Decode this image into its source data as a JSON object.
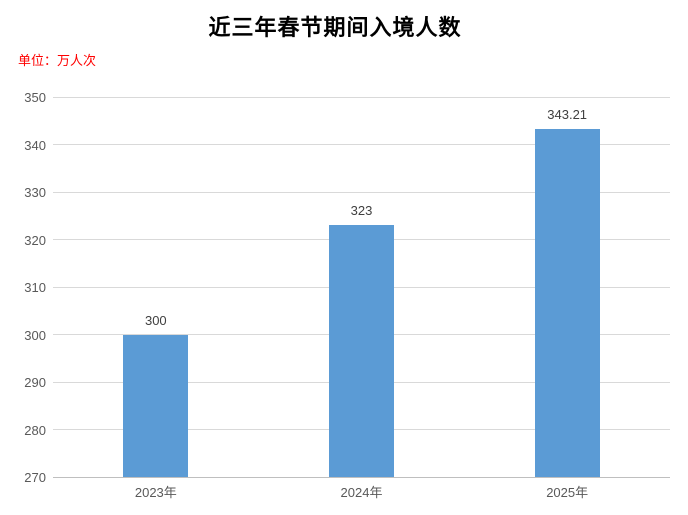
{
  "chart_data": {
    "type": "bar",
    "title": "近三年春节期间入境人数",
    "unit_label": "单位：万人次",
    "categories": [
      "2023年",
      "2024年",
      "2025年"
    ],
    "values": [
      300,
      323,
      343.21
    ],
    "value_labels": [
      "300",
      "323",
      "343.21"
    ],
    "xlabel": "",
    "ylabel": "",
    "ylim": [
      270,
      350
    ],
    "ytick_step": 10,
    "yticks": [
      "270",
      "280",
      "290",
      "300",
      "310",
      "320",
      "330",
      "340",
      "350"
    ],
    "grid": true,
    "legend": "none",
    "colors": {
      "bar": "#5B9BD5",
      "title": "#000000",
      "unit_label": "#FF0000",
      "value_label": "#404040",
      "axis_text": "#595959",
      "gridline": "#D9D9D9",
      "axis_line": "#BFBFBF",
      "background": "#FFFFFF"
    }
  }
}
